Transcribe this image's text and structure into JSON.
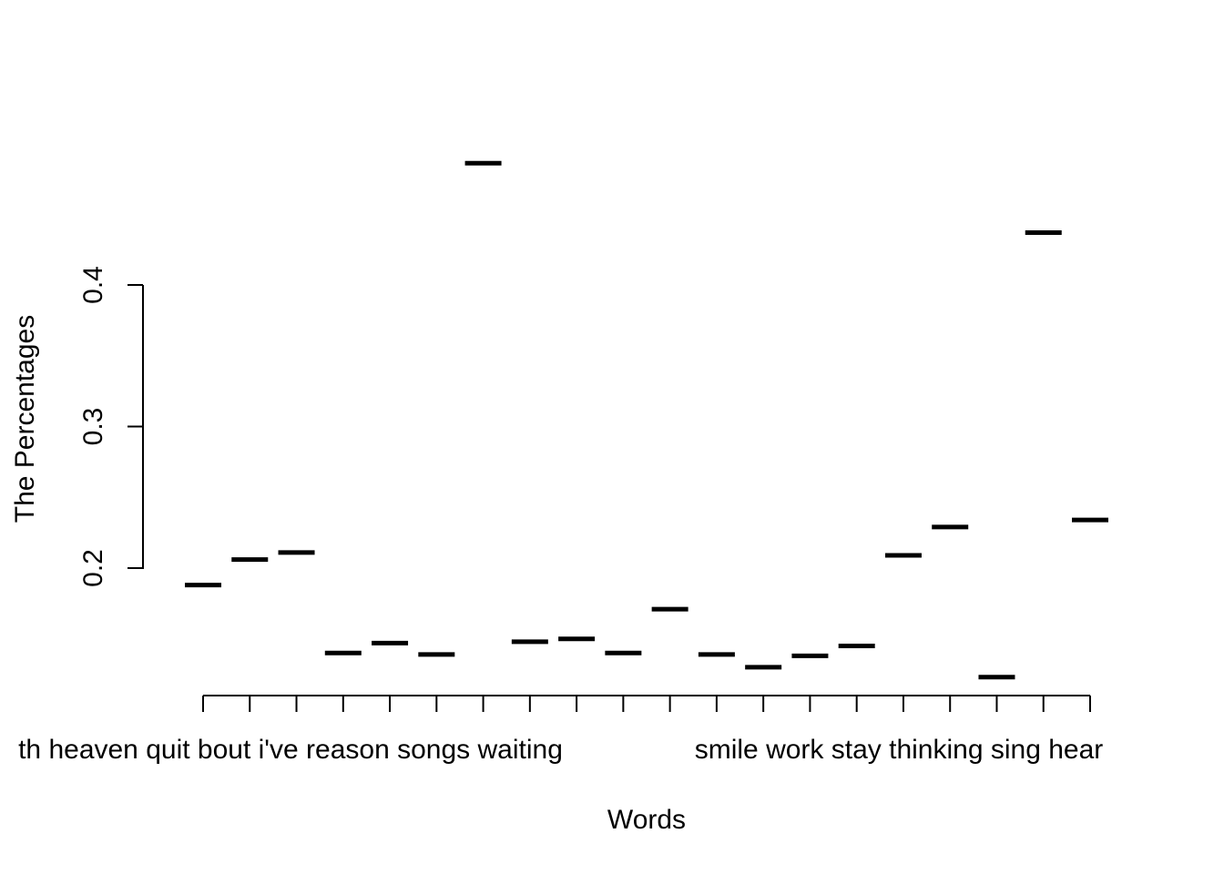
{
  "chart_data": {
    "type": "scatter",
    "marker": "horizontal-segment",
    "xlabel": "Words",
    "ylabel": "The Percentages",
    "ylim": [
      0.11,
      0.52
    ],
    "yticks": [
      "0.2",
      "0.3",
      "0.4"
    ],
    "ytick_values": [
      0.2,
      0.3,
      0.4
    ],
    "x_tick_count": 20,
    "x_axis_label_text_left": "th heaven quit bout i've reason songs waiting",
    "x_axis_label_text_right": "smile work stay thinking sing hear",
    "values": [
      0.188,
      0.206,
      0.211,
      0.14,
      0.147,
      0.139,
      0.486,
      0.148,
      0.15,
      0.14,
      0.171,
      0.139,
      0.13,
      0.138,
      0.145,
      0.209,
      0.229,
      0.123,
      0.437,
      0.234
    ]
  }
}
